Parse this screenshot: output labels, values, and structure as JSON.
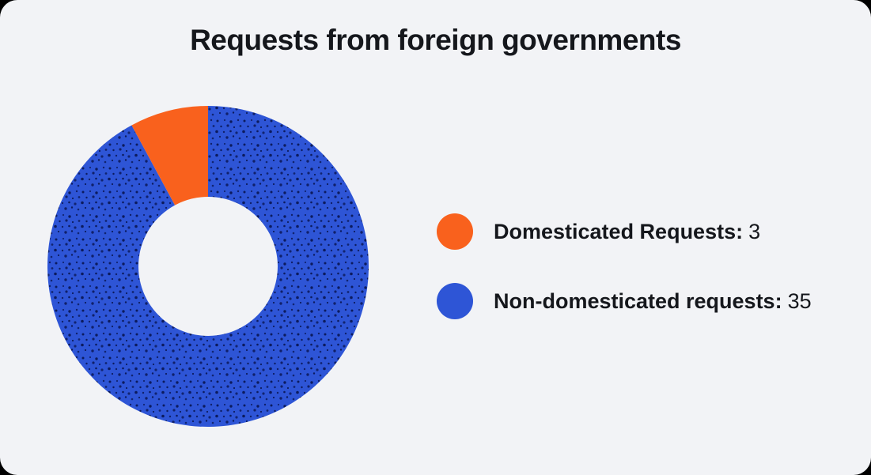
{
  "page": {
    "title": "Requests from foreign governments"
  },
  "colors": {
    "card_background": "#f2f3f6",
    "outside_background": "#000000",
    "text": "#15171c",
    "orange": "#f9611d",
    "blue": "#2e55d6",
    "texture_dot": "#0c1b5e"
  },
  "chart_data": {
    "type": "pie",
    "donut": true,
    "title": "Requests from foreign governments",
    "total": 38,
    "legend_position": "right",
    "segments": [
      {
        "label": "Domesticated Requests",
        "value": 3,
        "color": "#f9611d",
        "texture": "none"
      },
      {
        "label": "Non-domesticated requests",
        "value": 35,
        "color": "#2e55d6",
        "texture": "dots"
      }
    ],
    "legend": [
      {
        "label": "Domesticated Requests:",
        "value": "3",
        "color": "#f9611d"
      },
      {
        "label": "Non-domesticated requests:",
        "value": "35",
        "color": "#2e55d6"
      }
    ]
  }
}
